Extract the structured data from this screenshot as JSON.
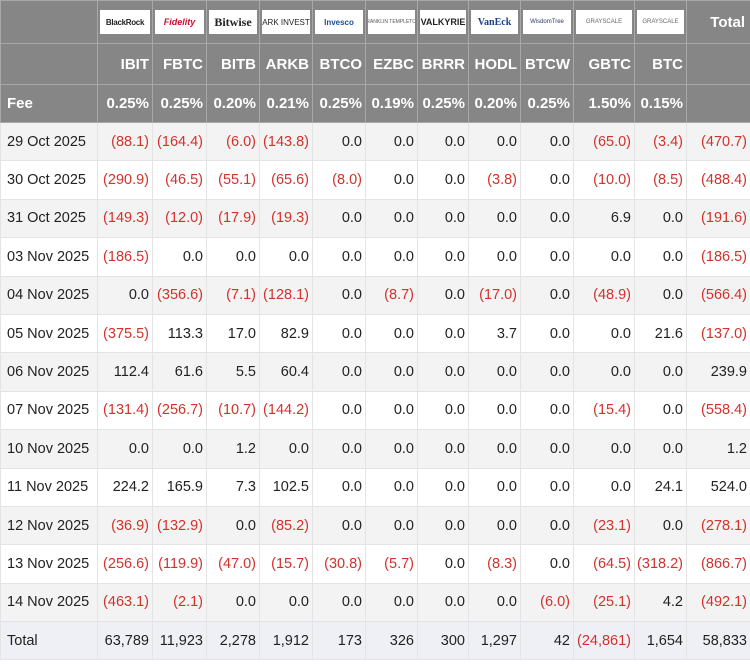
{
  "header": {
    "issuers": [
      "BlackRock",
      "Fidelity",
      "Bitwise",
      "ARK INVEST",
      "Invesco",
      "FRANKLIN TEMPLETON",
      "VALKYRIE",
      "VanEck",
      "WisdomTree",
      "GRAYSCALE",
      "GRAYSCALE"
    ],
    "total": "Total"
  },
  "tickers": [
    "IBIT",
    "FBTC",
    "BITB",
    "ARKB",
    "BTCO",
    "EZBC",
    "BRRR",
    "HODL",
    "BTCW",
    "GBTC",
    "BTC"
  ],
  "fee": {
    "label": "Fee",
    "values": [
      "0.25%",
      "0.25%",
      "0.20%",
      "0.21%",
      "0.25%",
      "0.19%",
      "0.25%",
      "0.20%",
      "0.25%",
      "1.50%",
      "0.15%"
    ]
  },
  "rows": [
    [
      "29 Oct 2025",
      "(88.1)",
      "(164.4)",
      "(6.0)",
      "(143.8)",
      "0.0",
      "0.0",
      "0.0",
      "0.0",
      "0.0",
      "(65.0)",
      "(3.4)",
      "(470.7)"
    ],
    [
      "30 Oct 2025",
      "(290.9)",
      "(46.5)",
      "(55.1)",
      "(65.6)",
      "(8.0)",
      "0.0",
      "0.0",
      "(3.8)",
      "0.0",
      "(10.0)",
      "(8.5)",
      "(488.4)"
    ],
    [
      "31 Oct 2025",
      "(149.3)",
      "(12.0)",
      "(17.9)",
      "(19.3)",
      "0.0",
      "0.0",
      "0.0",
      "0.0",
      "0.0",
      "6.9",
      "0.0",
      "(191.6)"
    ],
    [
      "03 Nov 2025",
      "(186.5)",
      "0.0",
      "0.0",
      "0.0",
      "0.0",
      "0.0",
      "0.0",
      "0.0",
      "0.0",
      "0.0",
      "0.0",
      "(186.5)"
    ],
    [
      "04 Nov 2025",
      "0.0",
      "(356.6)",
      "(7.1)",
      "(128.1)",
      "0.0",
      "(8.7)",
      "0.0",
      "(17.0)",
      "0.0",
      "(48.9)",
      "0.0",
      "(566.4)"
    ],
    [
      "05 Nov 2025",
      "(375.5)",
      "113.3",
      "17.0",
      "82.9",
      "0.0",
      "0.0",
      "0.0",
      "3.7",
      "0.0",
      "0.0",
      "21.6",
      "(137.0)"
    ],
    [
      "06 Nov 2025",
      "112.4",
      "61.6",
      "5.5",
      "60.4",
      "0.0",
      "0.0",
      "0.0",
      "0.0",
      "0.0",
      "0.0",
      "0.0",
      "239.9"
    ],
    [
      "07 Nov 2025",
      "(131.4)",
      "(256.7)",
      "(10.7)",
      "(144.2)",
      "0.0",
      "0.0",
      "0.0",
      "0.0",
      "0.0",
      "(15.4)",
      "0.0",
      "(558.4)"
    ],
    [
      "10 Nov 2025",
      "0.0",
      "0.0",
      "1.2",
      "0.0",
      "0.0",
      "0.0",
      "0.0",
      "0.0",
      "0.0",
      "0.0",
      "0.0",
      "1.2"
    ],
    [
      "11 Nov 2025",
      "224.2",
      "165.9",
      "7.3",
      "102.5",
      "0.0",
      "0.0",
      "0.0",
      "0.0",
      "0.0",
      "0.0",
      "24.1",
      "524.0"
    ],
    [
      "12 Nov 2025",
      "(36.9)",
      "(132.9)",
      "0.0",
      "(85.2)",
      "0.0",
      "0.0",
      "0.0",
      "0.0",
      "0.0",
      "(23.1)",
      "0.0",
      "(278.1)"
    ],
    [
      "13 Nov 2025",
      "(256.6)",
      "(119.9)",
      "(47.0)",
      "(15.7)",
      "(30.8)",
      "(5.7)",
      "0.0",
      "(8.3)",
      "0.0",
      "(64.5)",
      "(318.2)",
      "(866.7)"
    ],
    [
      "14 Nov 2025",
      "(463.1)",
      "(2.1)",
      "0.0",
      "0.0",
      "0.0",
      "0.0",
      "0.0",
      "0.0",
      "(6.0)",
      "(25.1)",
      "4.2",
      "(492.1)"
    ]
  ],
  "total_row": [
    "Total",
    "63,789",
    "11,923",
    "2,278",
    "1,912",
    "173",
    "326",
    "300",
    "1,297",
    "42",
    "(24,861)",
    "1,654",
    "58,833"
  ]
}
